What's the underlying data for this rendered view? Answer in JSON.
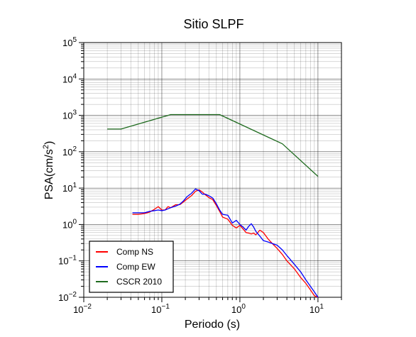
{
  "chart_data": {
    "type": "line",
    "title": "Sitio SLPF",
    "xlabel": "Periodo (s)",
    "ylabel": {
      "base": "PSA(cm/s",
      "sup": "2",
      "tail": ")"
    },
    "xscale": "log",
    "yscale": "log",
    "xlim": [
      0.01,
      20
    ],
    "ylim": [
      0.01,
      100000
    ],
    "x_ticks": [
      {
        "value": 0.01,
        "base": "10",
        "exp": "−2"
      },
      {
        "value": 0.1,
        "base": "10",
        "exp": "−1"
      },
      {
        "value": 1,
        "base": "10",
        "exp": "0"
      },
      {
        "value": 10,
        "base": "10",
        "exp": "1"
      }
    ],
    "y_ticks": [
      {
        "value": 0.01,
        "base": "10",
        "exp": "−2"
      },
      {
        "value": 0.1,
        "base": "10",
        "exp": "−1"
      },
      {
        "value": 1,
        "base": "10",
        "exp": "0"
      },
      {
        "value": 10,
        "base": "10",
        "exp": "1"
      },
      {
        "value": 100,
        "base": "10",
        "exp": "2"
      },
      {
        "value": 1000,
        "base": "10",
        "exp": "3"
      },
      {
        "value": 10000,
        "base": "10",
        "exp": "4"
      },
      {
        "value": 100000,
        "base": "10",
        "exp": "5"
      }
    ],
    "grid": true,
    "legend_position": "bottom-left",
    "series": [
      {
        "name": "Comp NS",
        "color": "#ff0000",
        "x": [
          0.042,
          0.05,
          0.06,
          0.07,
          0.08,
          0.09,
          0.1,
          0.11,
          0.12,
          0.13,
          0.15,
          0.17,
          0.19,
          0.21,
          0.24,
          0.27,
          0.3,
          0.33,
          0.36,
          0.4,
          0.45,
          0.5,
          0.55,
          0.6,
          0.7,
          0.8,
          0.9,
          1.0,
          1.1,
          1.2,
          1.3,
          1.4,
          1.5,
          1.6,
          1.8,
          2.0,
          2.3,
          2.6,
          3.0,
          3.5,
          4.0,
          5.0,
          6.0,
          7.0,
          8.0,
          9.0,
          10.0
        ],
        "y": [
          1.9,
          1.9,
          2.0,
          2.2,
          2.6,
          3.1,
          2.5,
          2.5,
          3.1,
          2.9,
          3.5,
          3.5,
          4.2,
          5.0,
          6.2,
          8.2,
          9.0,
          7.8,
          6.6,
          5.5,
          4.8,
          3.3,
          2.3,
          1.6,
          1.4,
          0.95,
          0.8,
          0.95,
          0.75,
          0.6,
          0.58,
          0.55,
          0.58,
          0.52,
          0.7,
          0.6,
          0.4,
          0.3,
          0.22,
          0.15,
          0.1,
          0.06,
          0.035,
          0.024,
          0.016,
          0.011,
          0.01
        ]
      },
      {
        "name": "Comp EW",
        "color": "#0000ff",
        "x": [
          0.042,
          0.05,
          0.06,
          0.07,
          0.08,
          0.09,
          0.1,
          0.11,
          0.12,
          0.13,
          0.15,
          0.17,
          0.19,
          0.21,
          0.24,
          0.27,
          0.3,
          0.33,
          0.36,
          0.4,
          0.45,
          0.5,
          0.55,
          0.6,
          0.7,
          0.8,
          0.9,
          1.0,
          1.1,
          1.2,
          1.3,
          1.4,
          1.5,
          1.6,
          1.8,
          2.0,
          2.3,
          2.6,
          3.0,
          3.5,
          4.0,
          5.0,
          6.0,
          7.0,
          8.0,
          9.0,
          10.0
        ],
        "y": [
          2.1,
          2.1,
          2.1,
          2.3,
          2.4,
          2.5,
          2.4,
          2.5,
          2.7,
          2.9,
          3.2,
          3.6,
          4.5,
          5.8,
          7.2,
          9.5,
          8.5,
          6.8,
          6.8,
          6.2,
          5.3,
          3.7,
          2.5,
          1.9,
          1.8,
          1.1,
          1.3,
          1.0,
          0.85,
          0.7,
          0.9,
          1.05,
          0.85,
          0.65,
          0.48,
          0.36,
          0.33,
          0.3,
          0.27,
          0.2,
          0.14,
          0.08,
          0.05,
          0.03,
          0.02,
          0.014,
          0.01
        ]
      },
      {
        "name": "CSCR 2010",
        "color": "#1f6b1f",
        "x": [
          0.02,
          0.03,
          0.13,
          0.55,
          3.5,
          10.0
        ],
        "y": [
          420,
          420,
          1050,
          1050,
          165,
          21
        ]
      }
    ]
  }
}
